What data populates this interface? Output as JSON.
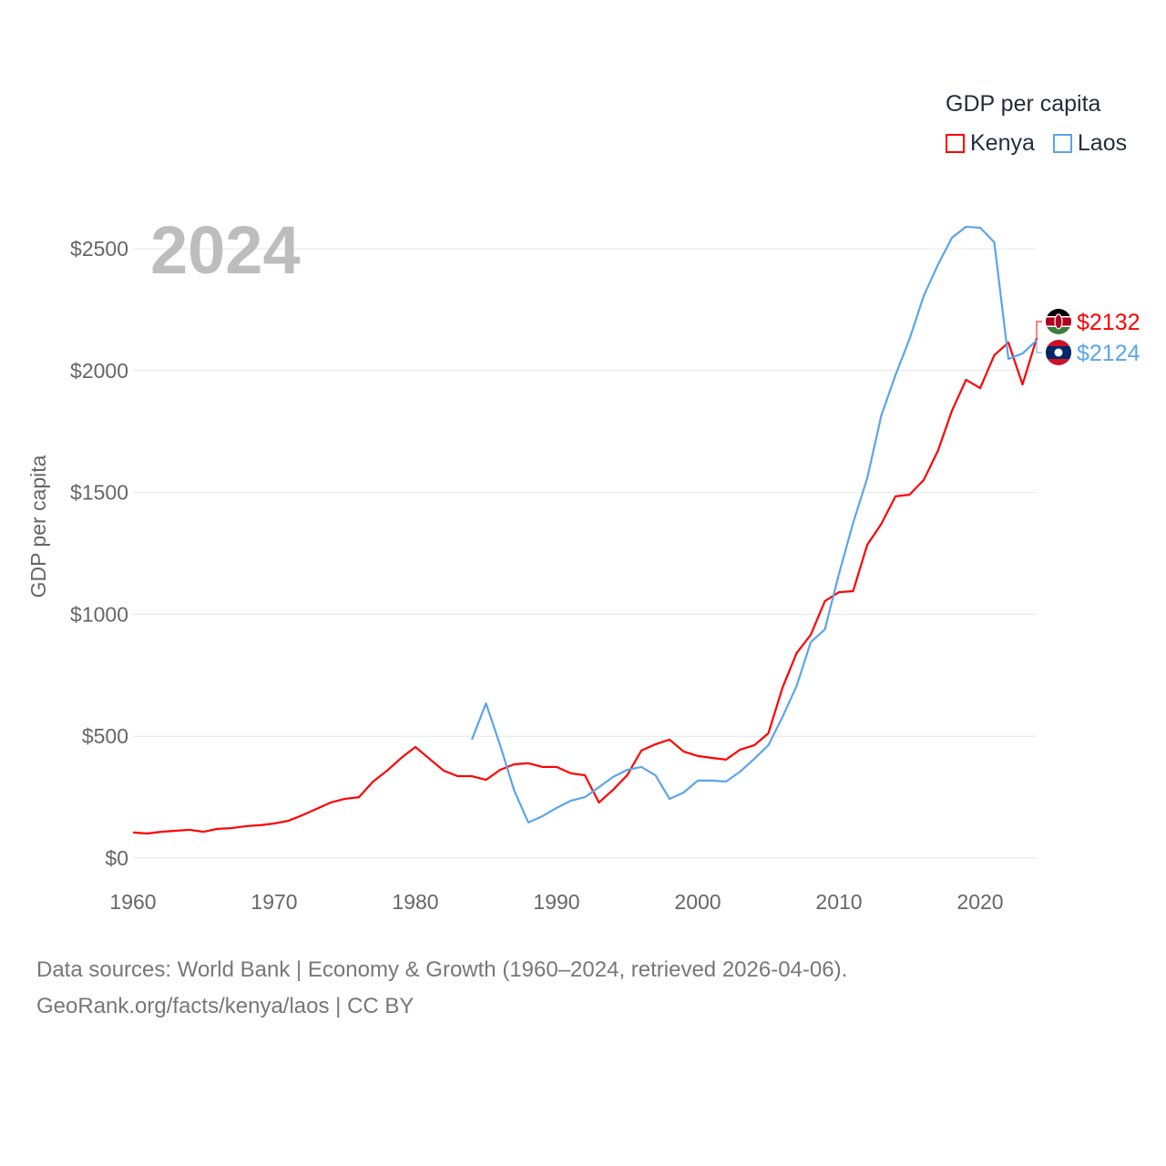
{
  "chart_data": {
    "type": "line",
    "title": "GDP per capita",
    "year_label": "2024",
    "xlabel": "",
    "ylabel": "GDP per capita",
    "xlim": [
      1960,
      2024
    ],
    "ylim": [
      0,
      2500
    ],
    "x_ticks": [
      "1960",
      "1970",
      "1980",
      "1990",
      "2000",
      "2010",
      "2020"
    ],
    "y_ticks": [
      "$0",
      "$500",
      "$1000",
      "$1500",
      "$2000",
      "$2500"
    ],
    "grid": true,
    "legend_position": "top-right",
    "series": [
      {
        "name": "Kenya",
        "color": "#ff0000",
        "start_year": 1960,
        "end_label": "$2132",
        "values": [
          105,
          101,
          108,
          112,
          116,
          108,
          120,
          123,
          131,
          135,
          142,
          153,
          176,
          202,
          228,
          243,
          250,
          314,
          359,
          411,
          456,
          407,
          359,
          336,
          336,
          321,
          362,
          385,
          389,
          374,
          374,
          348,
          340,
          228,
          280,
          340,
          441,
          467,
          486,
          437,
          419,
          411,
          404,
          445,
          463,
          512,
          699,
          841,
          916,
          1054,
          1091,
          1095,
          1285,
          1371,
          1484,
          1491,
          1551,
          1670,
          1835,
          1962,
          1928,
          2063,
          2115,
          1943,
          2132
        ]
      },
      {
        "name": "Laos",
        "color": "#5aa5ea",
        "start_year": 1984,
        "end_label": "$2124",
        "values": [
          486,
          635,
          463,
          277,
          146,
          172,
          206,
          235,
          250,
          291,
          333,
          362,
          374,
          340,
          243,
          269,
          318,
          318,
          314,
          355,
          407,
          463,
          579,
          706,
          886,
          938,
          1166,
          1375,
          1558,
          1816,
          1981,
          2130,
          2306,
          2433,
          2545,
          2590,
          2586,
          2526,
          2048,
          2070,
          2124
        ]
      }
    ]
  },
  "footer": {
    "line1": "Data sources: World Bank | Economy & Growth (1960–2024, retrieved 2026-04-06).",
    "line2": "GeoRank.org/facts/kenya/laos | CC BY"
  }
}
